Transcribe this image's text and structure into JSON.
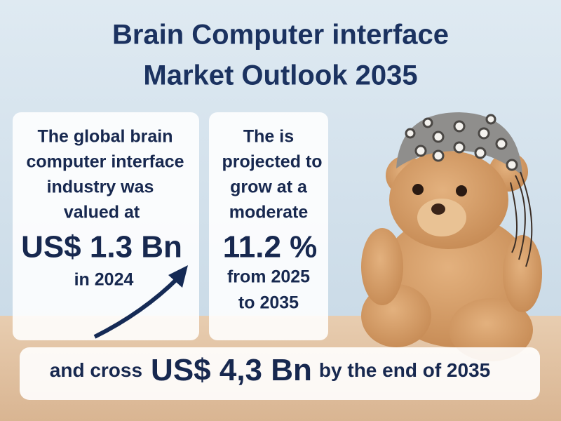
{
  "title": {
    "line1": "Brain Computer interface",
    "line2": "Market Outlook 2035"
  },
  "card_left": {
    "lines": [
      "The global brain",
      "computer interface",
      "industry was",
      "valued at"
    ],
    "value": "US$ 1.3 Bn",
    "note": "in 2024"
  },
  "card_right": {
    "lines": [
      "The is",
      "projected to",
      "grow at a",
      "moderate"
    ],
    "value": "11.2 %",
    "notes": [
      "from 2025",
      "to 2035"
    ]
  },
  "banner": {
    "prefix": "and cross",
    "value": "US$ 4,3 Bn",
    "suffix": "by the end of 2035"
  }
}
